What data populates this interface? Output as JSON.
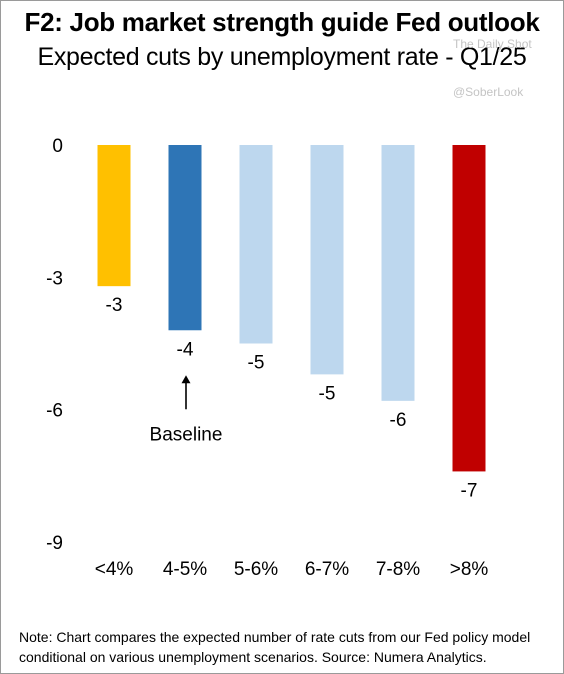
{
  "title": "F2: Job market strength guide Fed outlook",
  "subtitle": "Expected cuts by unemployment rate - Q1/25",
  "watermark": {
    "line1": "The Daily Shot",
    "line2": "@SoberLook"
  },
  "note": "Note: Chart compares the expected number of rate cuts from our Fed policy model conditional on various unemployment scenarios. Source: Numera Analytics.",
  "annotation": {
    "text": "Baseline",
    "target_category": "4-5%"
  },
  "chart_data": {
    "type": "bar",
    "title": "F2: Job market strength guide Fed outlook",
    "subtitle": "Expected cuts by unemployment rate - Q1/25",
    "categories": [
      "<4%",
      "4-5%",
      "5-6%",
      "6-7%",
      "7-8%",
      ">8%"
    ],
    "values": [
      -3.2,
      -4.2,
      -4.5,
      -5.2,
      -5.8,
      -7.4
    ],
    "data_labels": [
      "-3",
      "-4",
      "-5",
      "-5",
      "-6",
      "-7"
    ],
    "colors": [
      "#FFC000",
      "#2E75B6",
      "#BDD7EE",
      "#BDD7EE",
      "#BDD7EE",
      "#C00000"
    ],
    "ylim": [
      -9,
      0
    ],
    "yticks": [
      0,
      -3,
      -6,
      -9
    ],
    "ytick_labels": [
      "0",
      "-3",
      "-6",
      "-9"
    ],
    "xlabel": "",
    "ylabel": "",
    "grid": false,
    "legend": "none"
  }
}
